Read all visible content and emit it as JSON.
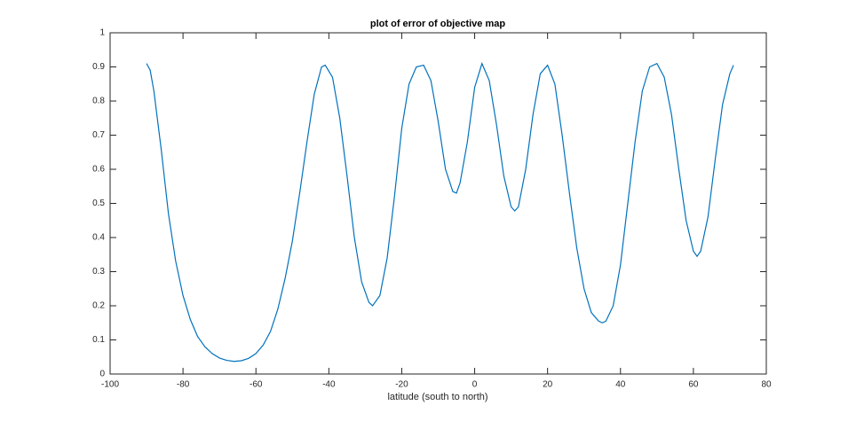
{
  "chart_data": {
    "type": "line",
    "title": "plot of error of objective map",
    "x_label": "latitude (south to north)",
    "x": [
      -90,
      -89,
      -88,
      -86,
      -84,
      -82,
      -80,
      -78,
      -76,
      -74,
      -72,
      -70,
      -68,
      -66,
      -64,
      -62,
      -60,
      -58,
      -56,
      -54,
      -52,
      -50,
      -48,
      -46,
      -44,
      -42,
      -41,
      -39,
      -37,
      -35,
      -33,
      -31,
      -29,
      -28,
      -26,
      -24,
      -22,
      -20,
      -18,
      -16,
      -14,
      -12,
      -10,
      -8,
      -6,
      -5,
      -4,
      -2,
      0,
      2,
      4,
      6,
      8,
      10,
      11,
      12,
      14,
      16,
      18,
      20,
      22,
      24,
      26,
      28,
      30,
      32,
      34,
      35,
      36,
      38,
      40,
      42,
      44,
      46,
      48,
      50,
      52,
      54,
      56,
      58,
      60,
      61,
      62,
      64,
      66,
      68,
      70,
      71
    ],
    "series": [
      {
        "color": "#0072bd",
        "values": [
          0.91,
          0.89,
          0.83,
          0.66,
          0.47,
          0.33,
          0.23,
          0.16,
          0.11,
          0.08,
          0.06,
          0.047,
          0.04,
          0.037,
          0.039,
          0.046,
          0.06,
          0.085,
          0.125,
          0.19,
          0.28,
          0.39,
          0.53,
          0.68,
          0.82,
          0.9,
          0.905,
          0.87,
          0.75,
          0.58,
          0.4,
          0.27,
          0.21,
          0.2,
          0.23,
          0.34,
          0.52,
          0.72,
          0.85,
          0.9,
          0.905,
          0.86,
          0.74,
          0.6,
          0.535,
          0.53,
          0.56,
          0.68,
          0.84,
          0.91,
          0.86,
          0.73,
          0.58,
          0.49,
          0.478,
          0.49,
          0.6,
          0.76,
          0.88,
          0.905,
          0.85,
          0.7,
          0.53,
          0.37,
          0.25,
          0.18,
          0.155,
          0.15,
          0.155,
          0.2,
          0.32,
          0.5,
          0.68,
          0.83,
          0.9,
          0.91,
          0.87,
          0.76,
          0.6,
          0.45,
          0.36,
          0.345,
          0.36,
          0.46,
          0.63,
          0.79,
          0.88,
          0.905
        ]
      }
    ],
    "xlim": [
      -100,
      80
    ],
    "xticks": [
      -100,
      -80,
      -60,
      -40,
      -20,
      0,
      20,
      40,
      60,
      80
    ],
    "ylim": [
      0,
      1
    ],
    "yticks": [
      0,
      0.1,
      0.2,
      0.3,
      0.4,
      0.5,
      0.6,
      0.7,
      0.8,
      0.9,
      1
    ]
  }
}
